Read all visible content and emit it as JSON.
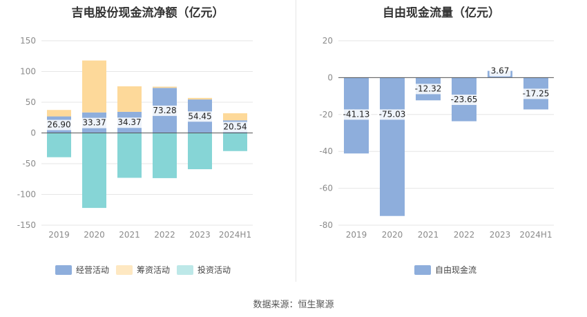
{
  "source": "数据来源：恒生聚源",
  "colors": {
    "operating": "#8eaedc",
    "financing": "#fdd99a",
    "investing": "#86d5d6",
    "fcf": "#8eaedc",
    "grid": "#e6e6e6",
    "axis": "#555555"
  },
  "chart_data": [
    {
      "type": "bar",
      "stacked": true,
      "title": "吉电股份现金流净额（亿元）",
      "categories": [
        "2019",
        "2020",
        "2021",
        "2022",
        "2023",
        "2024H1"
      ],
      "ylim": [
        -150,
        150
      ],
      "yticks": [
        150,
        100,
        50,
        0,
        -50,
        -100,
        -150
      ],
      "ytick_labels": [
        "150",
        "100",
        "50",
        "0",
        "-50",
        "-100",
        "-150"
      ],
      "series": [
        {
          "name": "经营活动",
          "key": "operating",
          "values": [
            26.9,
            33.37,
            34.37,
            73.28,
            54.45,
            20.54
          ],
          "labels": [
            "26.90",
            "33.37",
            "34.37",
            "73.28",
            "54.45",
            "20.54"
          ]
        },
        {
          "name": "筹资活动",
          "key": "financing",
          "values": [
            10.5,
            84.5,
            41.5,
            2.0,
            2.5,
            11.5
          ]
        },
        {
          "name": "投资活动",
          "key": "investing",
          "values": [
            -39.5,
            -122.0,
            -73.0,
            -73.5,
            -59.0,
            -29.5
          ]
        }
      ],
      "legend": [
        "经营活动",
        "筹资活动",
        "投资活动"
      ],
      "legend_position": "bottom"
    },
    {
      "type": "bar",
      "title": "自由现金流量（亿元）",
      "categories": [
        "2019",
        "2020",
        "2021",
        "2022",
        "2023",
        "2024H1"
      ],
      "ylim": [
        -80,
        20
      ],
      "yticks": [
        20,
        0,
        -20,
        -40,
        -60,
        -80
      ],
      "ytick_labels": [
        "20",
        "0",
        "-20",
        "-40",
        "-60",
        "-80"
      ],
      "series": [
        {
          "name": "自由现金流",
          "key": "fcf",
          "values": [
            -41.13,
            -75.03,
            -12.32,
            -23.65,
            3.67,
            -17.25
          ],
          "labels": [
            "-41.13",
            "-75.03",
            "-12.32",
            "-23.65",
            "3.67",
            "-17.25"
          ]
        }
      ],
      "legend": [
        "自由现金流"
      ],
      "legend_position": "bottom"
    }
  ]
}
